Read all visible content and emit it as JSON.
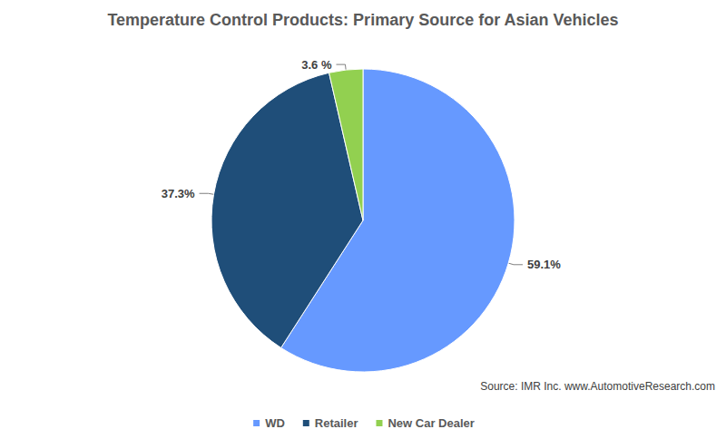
{
  "chart_data": {
    "type": "pie",
    "title": "Temperature Control Products: Primary Source for Asian Vehicles",
    "categories": [
      "WD",
      "Retailer",
      "New Car Dealer"
    ],
    "values": [
      59.1,
      37.3,
      3.6
    ],
    "value_labels": [
      "59.1%",
      "37.3%",
      "3.6 %"
    ],
    "colors": [
      "#6699ff",
      "#1f4e79",
      "#92d050"
    ],
    "data_labels": true,
    "legend": "bottom",
    "annotations": [
      "Source: IMR Inc. www.AutomotiveResearch.com"
    ]
  }
}
